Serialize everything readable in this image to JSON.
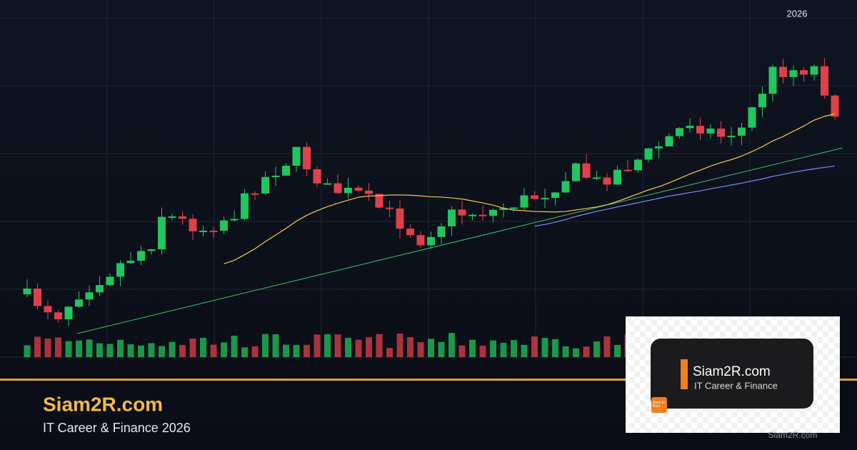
{
  "chart_label": "2026",
  "footer": {
    "title": "Siam2R.com",
    "subtitle": "IT Career & Finance 2026"
  },
  "logo_card": {
    "title": "Siam2R.com",
    "subtitle": "IT Career & Finance",
    "badge": "Siam to Rich"
  },
  "watermark": "Siam2R.com"
}
